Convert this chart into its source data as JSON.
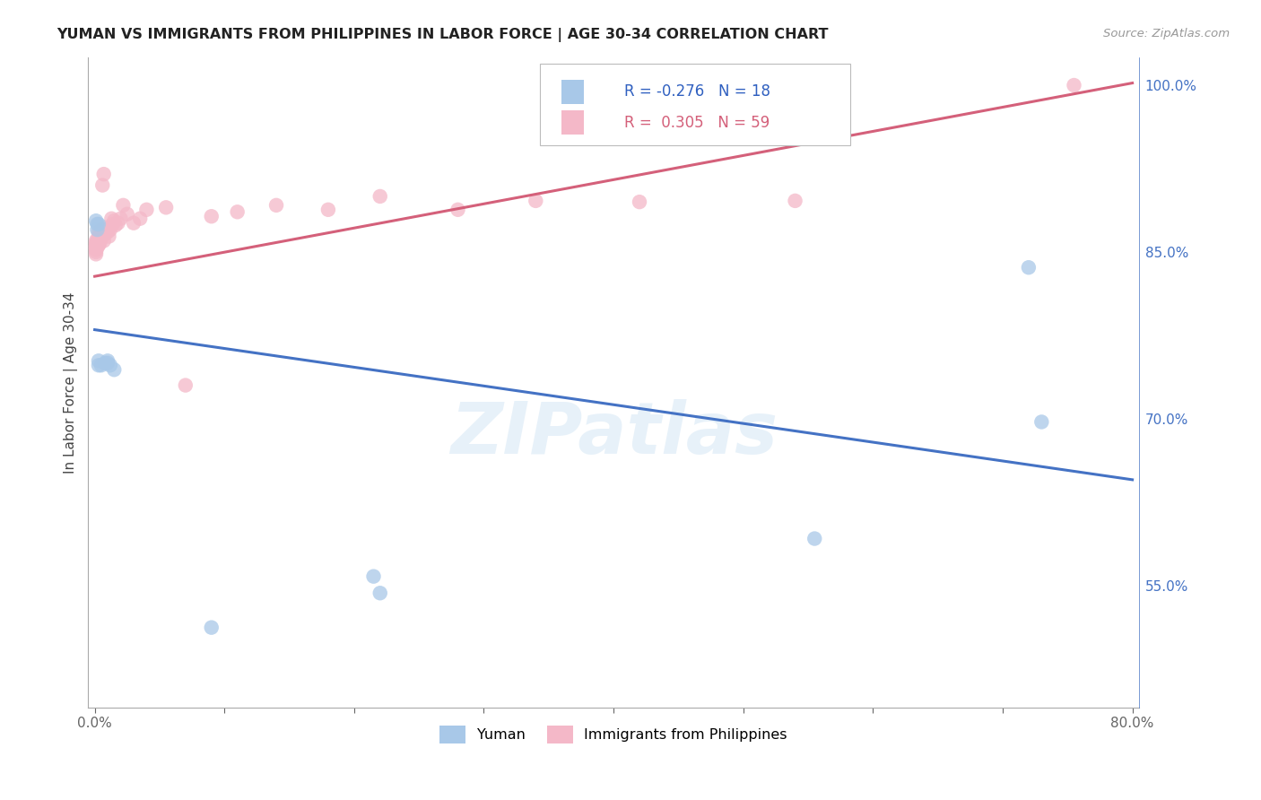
{
  "title": "YUMAN VS IMMIGRANTS FROM PHILIPPINES IN LABOR FORCE | AGE 30-34 CORRELATION CHART",
  "source": "Source: ZipAtlas.com",
  "ylabel": "In Labor Force | Age 30-34",
  "legend_label1": "Yuman",
  "legend_label2": "Immigrants from Philippines",
  "r1": -0.276,
  "n1": 18,
  "r2": 0.305,
  "n2": 59,
  "color_blue": "#a8c8e8",
  "color_pink": "#f4b8c8",
  "color_blue_line": "#4472c4",
  "color_pink_line": "#d4607a",
  "xlim": [
    -0.005,
    0.805
  ],
  "ylim": [
    0.44,
    1.025
  ],
  "yticks_right": [
    0.55,
    0.7,
    0.85,
    1.0
  ],
  "ytick_labels_right": [
    "55.0%",
    "70.0%",
    "85.0%",
    "100.0%"
  ],
  "blue_line_x": [
    0.0,
    0.8
  ],
  "blue_line_y": [
    0.78,
    0.645
  ],
  "pink_line_x": [
    0.0,
    0.8
  ],
  "pink_line_y": [
    0.828,
    1.002
  ],
  "blue_x": [
    0.001,
    0.002,
    0.002,
    0.003,
    0.003,
    0.003,
    0.005,
    0.008,
    0.01,
    0.01,
    0.012,
    0.015,
    0.09,
    0.215,
    0.22,
    0.555,
    0.72,
    0.73
  ],
  "blue_y": [
    0.878,
    0.87,
    0.875,
    0.875,
    0.752,
    0.748,
    0.748,
    0.75,
    0.752,
    0.75,
    0.748,
    0.744,
    0.512,
    0.558,
    0.543,
    0.592,
    0.836,
    0.697
  ],
  "pink_x": [
    0.001,
    0.001,
    0.001,
    0.001,
    0.001,
    0.001,
    0.001,
    0.001,
    0.001,
    0.002,
    0.002,
    0.002,
    0.002,
    0.002,
    0.003,
    0.003,
    0.003,
    0.003,
    0.004,
    0.004,
    0.004,
    0.005,
    0.005,
    0.005,
    0.006,
    0.006,
    0.007,
    0.007,
    0.007,
    0.008,
    0.008,
    0.009,
    0.01,
    0.01,
    0.011,
    0.012,
    0.013,
    0.014,
    0.015,
    0.016,
    0.018,
    0.02,
    0.022,
    0.025,
    0.03,
    0.035,
    0.04,
    0.055,
    0.07,
    0.09,
    0.11,
    0.14,
    0.18,
    0.22,
    0.28,
    0.34,
    0.42,
    0.54,
    0.755
  ],
  "pink_y": [
    0.86,
    0.856,
    0.858,
    0.854,
    0.855,
    0.852,
    0.853,
    0.85,
    0.848,
    0.86,
    0.858,
    0.856,
    0.854,
    0.858,
    0.868,
    0.864,
    0.86,
    0.856,
    0.862,
    0.864,
    0.858,
    0.87,
    0.866,
    0.862,
    0.87,
    0.91,
    0.92,
    0.87,
    0.86,
    0.872,
    0.866,
    0.868,
    0.87,
    0.868,
    0.864,
    0.87,
    0.88,
    0.875,
    0.878,
    0.874,
    0.876,
    0.88,
    0.892,
    0.884,
    0.876,
    0.88,
    0.888,
    0.89,
    0.73,
    0.882,
    0.886,
    0.892,
    0.888,
    0.9,
    0.888,
    0.896,
    0.895,
    0.896,
    1.0
  ],
  "watermark": "ZIPatlas",
  "background_color": "#ffffff",
  "grid_color": "#cccccc"
}
